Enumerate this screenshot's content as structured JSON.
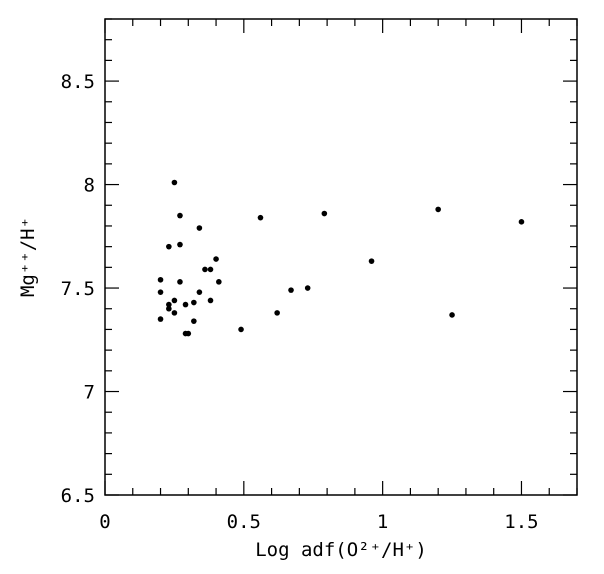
{
  "chart_data": {
    "type": "scatter",
    "title": "",
    "xlabel": "Log adf(O²⁺/H⁺)",
    "ylabel": "Mg⁺⁺/H⁺",
    "xlim": [
      0,
      1.7
    ],
    "ylim": [
      6.5,
      8.8
    ],
    "xticks": [
      0,
      0.5,
      1,
      1.5
    ],
    "xtick_labels": [
      "0",
      "0.5",
      "1",
      "1.5"
    ],
    "yticks": [
      6.5,
      7,
      7.5,
      8,
      8.5
    ],
    "ytick_labels": [
      "6.5",
      "7",
      "7.5",
      "8",
      "8.5"
    ],
    "x_minor_step": 0.1,
    "y_minor_step": 0.1,
    "grid": false,
    "legend": "none",
    "marker_color": "#000000",
    "series": [
      {
        "points": [
          {
            "x": 0.2,
            "y": 7.54
          },
          {
            "x": 0.2,
            "y": 7.48
          },
          {
            "x": 0.2,
            "y": 7.35
          },
          {
            "x": 0.23,
            "y": 7.7
          },
          {
            "x": 0.23,
            "y": 7.42
          },
          {
            "x": 0.23,
            "y": 7.4
          },
          {
            "x": 0.25,
            "y": 8.01
          },
          {
            "x": 0.25,
            "y": 7.44
          },
          {
            "x": 0.25,
            "y": 7.38
          },
          {
            "x": 0.27,
            "y": 7.85
          },
          {
            "x": 0.27,
            "y": 7.71
          },
          {
            "x": 0.27,
            "y": 7.53
          },
          {
            "x": 0.29,
            "y": 7.42
          },
          {
            "x": 0.29,
            "y": 7.28
          },
          {
            "x": 0.3,
            "y": 7.28
          },
          {
            "x": 0.32,
            "y": 7.43
          },
          {
            "x": 0.32,
            "y": 7.34
          },
          {
            "x": 0.34,
            "y": 7.79
          },
          {
            "x": 0.34,
            "y": 7.48
          },
          {
            "x": 0.36,
            "y": 7.59
          },
          {
            "x": 0.38,
            "y": 7.59
          },
          {
            "x": 0.38,
            "y": 7.44
          },
          {
            "x": 0.4,
            "y": 7.64
          },
          {
            "x": 0.41,
            "y": 7.53
          },
          {
            "x": 0.49,
            "y": 7.3
          },
          {
            "x": 0.56,
            "y": 7.84
          },
          {
            "x": 0.62,
            "y": 7.38
          },
          {
            "x": 0.67,
            "y": 7.49
          },
          {
            "x": 0.73,
            "y": 7.5
          },
          {
            "x": 0.79,
            "y": 7.86
          },
          {
            "x": 0.96,
            "y": 7.63
          },
          {
            "x": 1.2,
            "y": 7.88
          },
          {
            "x": 1.25,
            "y": 7.37
          },
          {
            "x": 1.5,
            "y": 7.82
          }
        ]
      }
    ]
  }
}
